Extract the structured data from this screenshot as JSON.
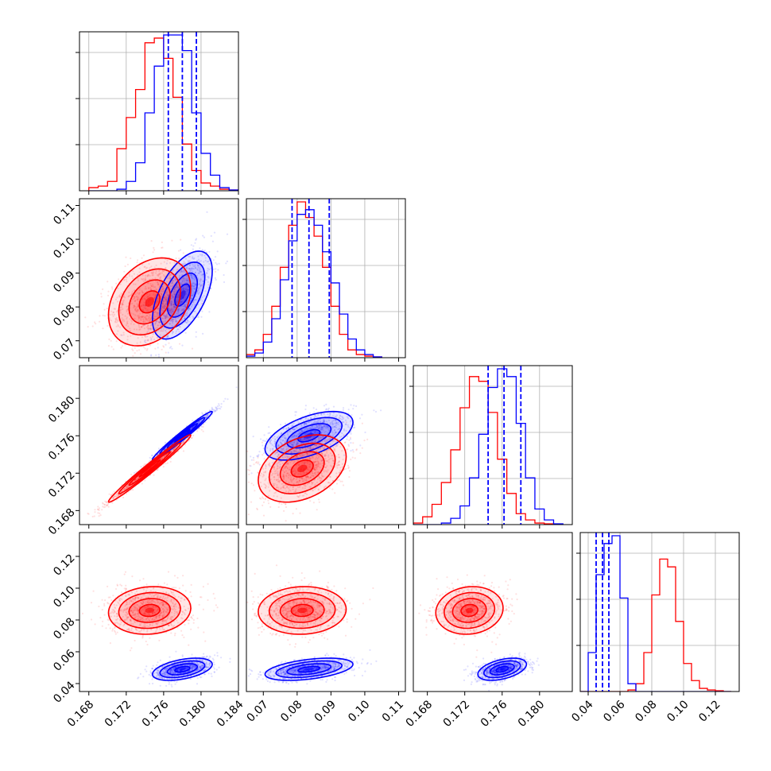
{
  "chart_data": {
    "type": "corner",
    "parameters": 4,
    "colors": {
      "red": "#ff0000",
      "blue": "#0000ff"
    },
    "series": [
      {
        "color": "red"
      },
      {
        "color": "blue"
      }
    ],
    "axes": [
      {
        "index": 0,
        "range": [
          0.167,
          0.184
        ],
        "ticks": [
          0.168,
          0.172,
          0.176,
          0.18,
          0.184
        ],
        "tick_labels": [
          "0.168",
          "0.172",
          "0.176",
          "0.180",
          "0.184"
        ]
      },
      {
        "index": 1,
        "range": [
          0.065,
          0.112
        ],
        "ticks": [
          0.07,
          0.08,
          0.09,
          0.1,
          0.11
        ],
        "tick_labels": [
          "0.07",
          "0.08",
          "0.09",
          "0.10",
          "0.11"
        ]
      },
      {
        "index": 2,
        "range": [
          0.1665,
          0.1835
        ],
        "ticks": [
          0.168,
          0.172,
          0.176,
          0.18
        ],
        "tick_labels": [
          "0.168",
          "0.172",
          "0.176",
          "0.180"
        ]
      },
      {
        "index": 3,
        "range": [
          0.035,
          0.135
        ],
        "ticks": [
          0.04,
          0.06,
          0.08,
          0.1,
          0.12
        ],
        "tick_labels": [
          "0.04",
          "0.06",
          "0.08",
          "0.10",
          "0.12"
        ]
      }
    ],
    "diagonal": [
      {
        "param": 0,
        "edges": [
          0.168,
          0.169,
          0.17,
          0.171,
          0.172,
          0.173,
          0.174,
          0.175,
          0.176,
          0.177,
          0.178,
          0.179,
          0.18,
          0.181,
          0.182,
          0.183,
          0.184
        ],
        "red": [
          0.02,
          0.03,
          0.06,
          0.27,
          0.47,
          0.65,
          0.95,
          0.98,
          0.85,
          0.6,
          0.3,
          0.13,
          0.05,
          0.03,
          0.01,
          0.005
        ],
        "blue": [
          0.0,
          0.0,
          0.0,
          0.01,
          0.06,
          0.18,
          0.5,
          0.8,
          1.0,
          1.0,
          0.9,
          0.5,
          0.24,
          0.1,
          0.02,
          0.005
        ],
        "quantiles": [
          0.1765,
          0.178,
          0.1795
        ]
      },
      {
        "param": 1,
        "edges": [
          0.065,
          0.0675,
          0.07,
          0.0725,
          0.075,
          0.0775,
          0.08,
          0.0825,
          0.085,
          0.0875,
          0.09,
          0.0925,
          0.095,
          0.0975,
          0.1,
          0.1025,
          0.105
        ],
        "red": [
          0.02,
          0.05,
          0.15,
          0.33,
          0.58,
          0.85,
          1.0,
          0.9,
          0.78,
          0.58,
          0.33,
          0.15,
          0.05,
          0.02,
          0.01,
          0.005
        ],
        "blue": [
          0.01,
          0.03,
          0.1,
          0.25,
          0.5,
          0.75,
          0.92,
          0.95,
          0.85,
          0.68,
          0.48,
          0.28,
          0.12,
          0.05,
          0.02,
          0.005
        ],
        "quantiles": [
          0.0785,
          0.0835,
          0.0895
        ]
      },
      {
        "param": 2,
        "edges": [
          0.1665,
          0.1675,
          0.1685,
          0.1695,
          0.1705,
          0.1715,
          0.1725,
          0.1735,
          0.1745,
          0.1755,
          0.1765,
          0.1775,
          0.1785,
          0.1795,
          0.1805,
          0.1815,
          0.1825
        ],
        "red": [
          0.01,
          0.05,
          0.13,
          0.27,
          0.48,
          0.75,
          0.95,
          0.92,
          0.72,
          0.42,
          0.2,
          0.07,
          0.03,
          0.01,
          0.005,
          0.0
        ],
        "blue": [
          0.0,
          0.0,
          0.0,
          0.01,
          0.04,
          0.12,
          0.3,
          0.58,
          0.88,
          1.0,
          0.95,
          0.65,
          0.3,
          0.1,
          0.03,
          0.005
        ],
        "quantiles": [
          0.1745,
          0.1762,
          0.178
        ]
      },
      {
        "param": 3,
        "edges": [
          0.035,
          0.04,
          0.045,
          0.05,
          0.055,
          0.06,
          0.065,
          0.07,
          0.075,
          0.08,
          0.085,
          0.09,
          0.095,
          0.1,
          0.105,
          0.11,
          0.115,
          0.12,
          0.125,
          0.13
        ],
        "red": [
          0.0,
          0.0,
          0.0,
          0.0,
          0.0,
          0.0,
          0.01,
          0.05,
          0.25,
          0.62,
          0.85,
          0.8,
          0.45,
          0.18,
          0.07,
          0.02,
          0.01,
          0.005,
          0.0
        ],
        "blue": [
          0.0,
          0.25,
          0.75,
          0.95,
          1.0,
          0.6,
          0.05,
          0.0,
          0.0,
          0.0,
          0.0,
          0.0,
          0.0,
          0.0,
          0.0,
          0.0,
          0.0,
          0.0,
          0.0
        ],
        "quantiles": [
          0.045,
          0.049,
          0.053
        ]
      }
    ],
    "pairs": [
      {
        "row": 1,
        "col": 0,
        "red": {
          "mean": [
            0.1745,
            0.0815
          ],
          "sd": [
            0.0022,
            0.0065
          ],
          "corr": 0.3
        },
        "blue": {
          "mean": [
            0.178,
            0.0835
          ],
          "sd": [
            0.0016,
            0.0065
          ],
          "corr": 0.55
        }
      },
      {
        "row": 2,
        "col": 0,
        "red": {
          "mean": [
            0.1745,
            0.1725
          ],
          "sd": [
            0.0022,
            0.0018
          ],
          "corr": 0.985
        },
        "blue": {
          "mean": [
            0.178,
            0.176
          ],
          "sd": [
            0.0016,
            0.0013
          ],
          "corr": 0.98
        }
      },
      {
        "row": 2,
        "col": 1,
        "red": {
          "mean": [
            0.0815,
            0.1725
          ],
          "sd": [
            0.0065,
            0.0018
          ],
          "corr": 0.35
        },
        "blue": {
          "mean": [
            0.0835,
            0.176
          ],
          "sd": [
            0.0065,
            0.0013
          ],
          "corr": 0.55
        }
      },
      {
        "row": 3,
        "col": 0,
        "red": {
          "mean": [
            0.1745,
            0.086
          ],
          "sd": [
            0.0022,
            0.0075
          ],
          "corr": 0.1
        },
        "blue": {
          "mean": [
            0.178,
            0.049
          ],
          "sd": [
            0.0016,
            0.0035
          ],
          "corr": 0.45
        }
      },
      {
        "row": 3,
        "col": 1,
        "red": {
          "mean": [
            0.0815,
            0.086
          ],
          "sd": [
            0.0065,
            0.0075
          ],
          "corr": 0.05
        },
        "blue": {
          "mean": [
            0.0835,
            0.049
          ],
          "sd": [
            0.0065,
            0.0035
          ],
          "corr": 0.45
        }
      },
      {
        "row": 3,
        "col": 2,
        "red": {
          "mean": [
            0.1725,
            0.086
          ],
          "sd": [
            0.0018,
            0.0075
          ],
          "corr": 0.1
        },
        "blue": {
          "mean": [
            0.176,
            0.049
          ],
          "sd": [
            0.0013,
            0.0035
          ],
          "corr": 0.45
        }
      }
    ]
  }
}
